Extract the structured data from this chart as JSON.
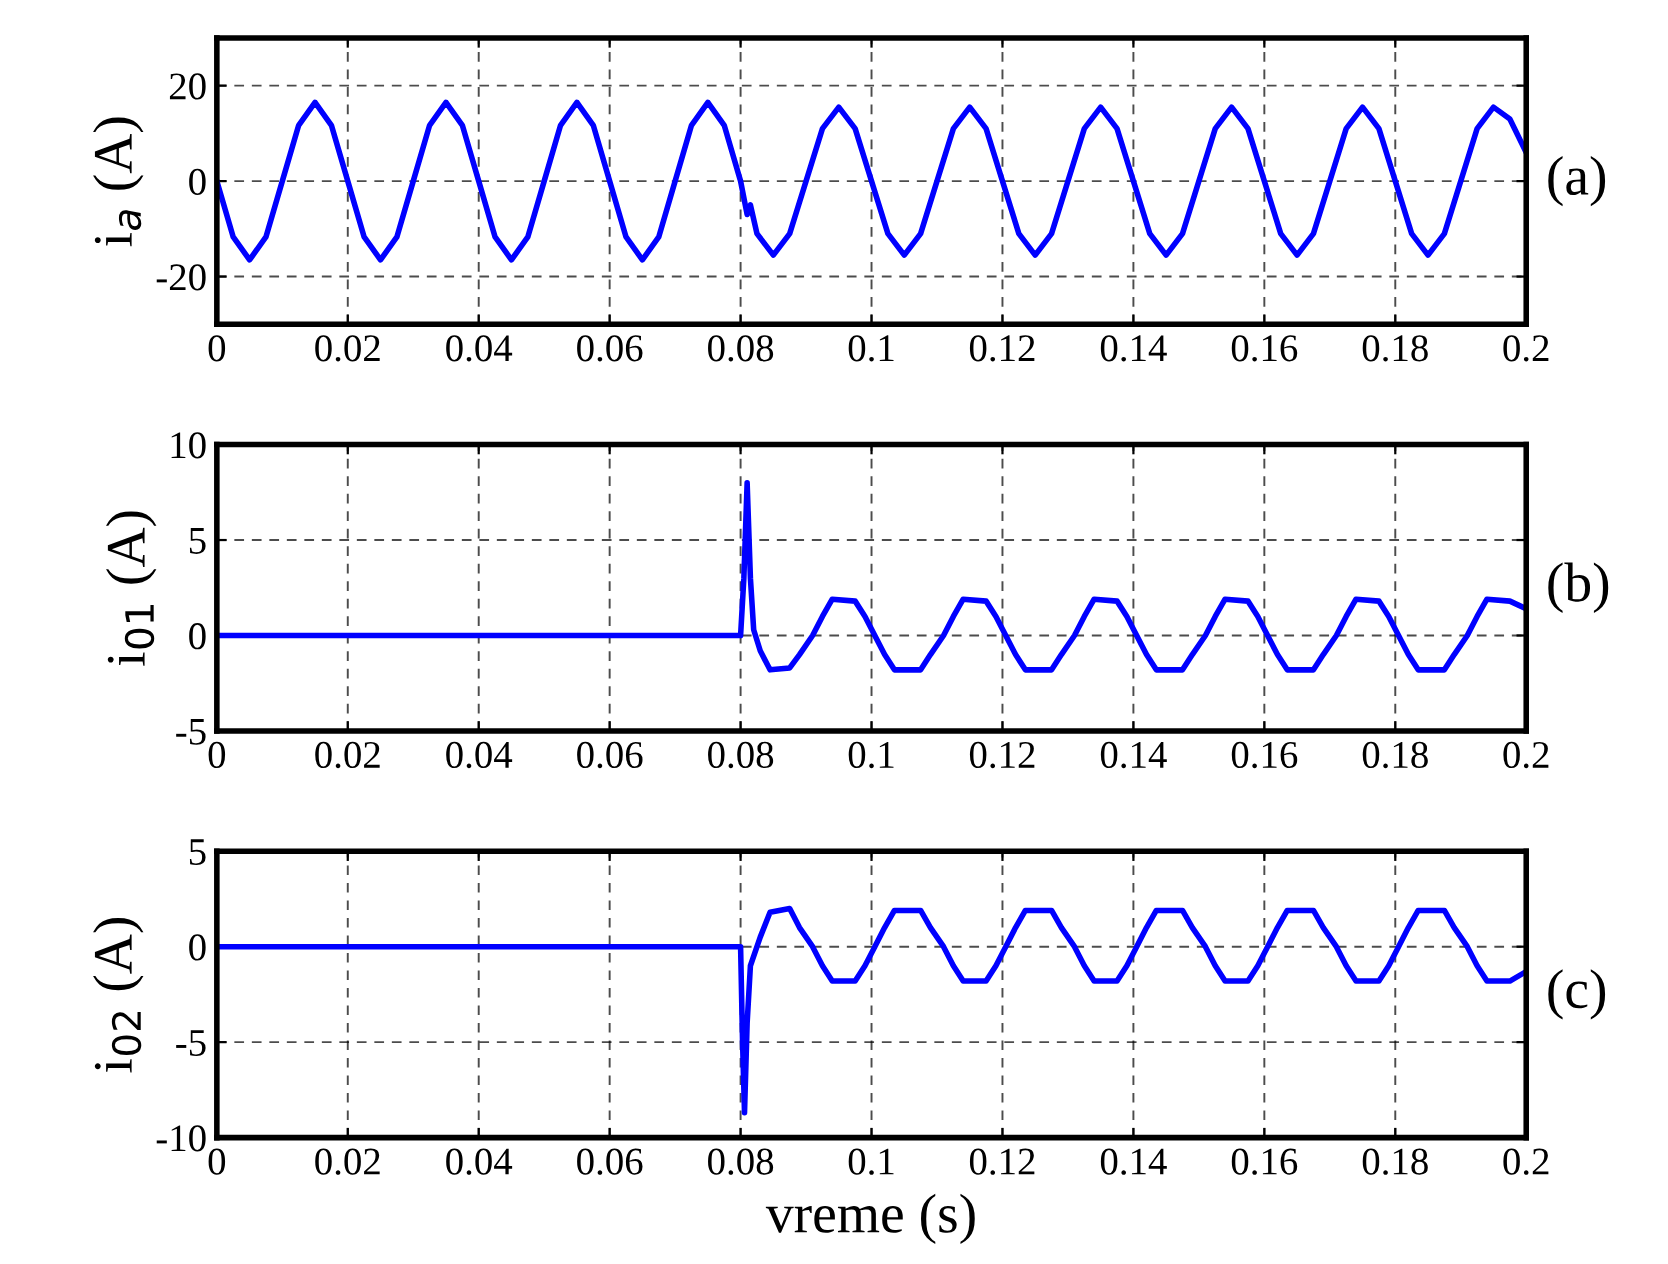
{
  "chart_data": [
    {
      "type": "line",
      "ylabel": "i$_{a}$ (A)",
      "annotations": [
        "(a)"
      ],
      "xlim": [
        0,
        0.2
      ],
      "ylim": [
        -30,
        30
      ],
      "xticks": [
        0,
        0.02,
        0.04,
        0.06,
        0.08,
        0.1,
        0.12,
        0.14,
        0.16,
        0.18,
        0.2
      ],
      "yticks": [
        -20,
        0,
        20
      ],
      "grid": true,
      "line_style": "solid",
      "marker": "none",
      "series": [
        {
          "color": "#0000ff",
          "x": [
            0,
            0.0025,
            0.005,
            0.0075,
            0.01,
            0.0125,
            0.015,
            0.0175,
            0.02,
            0.0225,
            0.025,
            0.0275,
            0.03,
            0.0325,
            0.035,
            0.0375,
            0.04,
            0.0425,
            0.045,
            0.0475,
            0.05,
            0.0525,
            0.055,
            0.0575,
            0.06,
            0.0625,
            0.065,
            0.0675,
            0.07,
            0.0725,
            0.075,
            0.0775,
            0.08,
            0.081,
            0.0815,
            0.0825,
            0.085,
            0.0875,
            0.09,
            0.0925,
            0.095,
            0.0975,
            0.1,
            0.1025,
            0.105,
            0.1075,
            0.11,
            0.1125,
            0.115,
            0.1175,
            0.12,
            0.1225,
            0.125,
            0.1275,
            0.13,
            0.1325,
            0.135,
            0.1375,
            0.14,
            0.1425,
            0.145,
            0.1475,
            0.15,
            0.1525,
            0.155,
            0.1575,
            0.16,
            0.1625,
            0.165,
            0.1675,
            0.17,
            0.1725,
            0.175,
            0.1775,
            0.18,
            0.1825,
            0.185,
            0.1875,
            0.19,
            0.1925,
            0.195,
            0.1975,
            0.2
          ],
          "values": [
            0,
            -11.7,
            -16.5,
            -11.7,
            0,
            11.7,
            16.5,
            11.7,
            0,
            -11.7,
            -16.5,
            -11.7,
            0,
            11.7,
            16.5,
            11.7,
            0,
            -11.7,
            -16.5,
            -11.7,
            0,
            11.7,
            16.5,
            11.7,
            0,
            -11.7,
            -16.5,
            -11.7,
            0,
            11.7,
            16.5,
            11.7,
            0,
            -7,
            -5,
            -11,
            -15.5,
            -11,
            0,
            11,
            15.5,
            11,
            0,
            -11,
            -15.5,
            -11,
            0,
            11,
            15.5,
            11,
            0,
            -11,
            -15.5,
            -11,
            0,
            11,
            15.5,
            11,
            0,
            -11,
            -15.5,
            -11,
            0,
            11,
            15.5,
            11,
            0,
            -11,
            -15.5,
            -11,
            0,
            11,
            15.5,
            11,
            0,
            -11,
            -15.5,
            -11,
            0,
            11,
            15.5,
            13,
            6
          ]
        }
      ]
    },
    {
      "type": "line",
      "ylabel": "i$_{01}$ (A)",
      "annotations": [
        "(b)"
      ],
      "xlim": [
        0,
        0.2
      ],
      "ylim": [
        -5,
        10
      ],
      "xticks": [
        0,
        0.02,
        0.04,
        0.06,
        0.08,
        0.1,
        0.12,
        0.14,
        0.16,
        0.18,
        0.2
      ],
      "yticks": [
        -5,
        0,
        5,
        10
      ],
      "grid": true,
      "line_style": "solid",
      "marker": "none",
      "series": [
        {
          "color": "#0000ff",
          "x": [
            0,
            0.08,
            0.0805,
            0.081,
            0.0815,
            0.082,
            0.083,
            0.0845,
            0.0875,
            0.089,
            0.091,
            0.0925,
            0.094,
            0.0975,
            0.099,
            0.1005,
            0.102,
            0.1035,
            0.1075,
            0.109,
            0.111,
            0.1125,
            0.114,
            0.1175,
            0.119,
            0.1205,
            0.122,
            0.1235,
            0.1275,
            0.129,
            0.131,
            0.1325,
            0.134,
            0.1375,
            0.139,
            0.1405,
            0.142,
            0.1435,
            0.1475,
            0.149,
            0.151,
            0.1525,
            0.154,
            0.1575,
            0.159,
            0.1605,
            0.162,
            0.1635,
            0.1675,
            0.169,
            0.171,
            0.1725,
            0.174,
            0.1775,
            0.179,
            0.1805,
            0.182,
            0.1835,
            0.1875,
            0.189,
            0.191,
            0.1925,
            0.194,
            0.1975,
            0.2
          ],
          "values": [
            0,
            0,
            3,
            8,
            3,
            0.3,
            -0.8,
            -1.8,
            -1.7,
            -1,
            0,
            1,
            1.9,
            1.8,
            1,
            0,
            -1,
            -1.8,
            -1.8,
            -1,
            0,
            1,
            1.9,
            1.8,
            1,
            0,
            -1,
            -1.8,
            -1.8,
            -1,
            0,
            1,
            1.9,
            1.8,
            1,
            0,
            -1,
            -1.8,
            -1.8,
            -1,
            0,
            1,
            1.9,
            1.8,
            1,
            0,
            -1,
            -1.8,
            -1.8,
            -1,
            0,
            1,
            1.9,
            1.8,
            1,
            0,
            -1,
            -1.8,
            -1.8,
            -1,
            0,
            1,
            1.9,
            1.8,
            1.4
          ]
        }
      ]
    },
    {
      "type": "line",
      "xlabel": "vreme (s)",
      "ylabel": "i$_{02}$ (A)",
      "annotations": [
        "(c)"
      ],
      "xlim": [
        0,
        0.2
      ],
      "ylim": [
        -10,
        5
      ],
      "xticks": [
        0,
        0.02,
        0.04,
        0.06,
        0.08,
        0.1,
        0.12,
        0.14,
        0.16,
        0.18,
        0.2
      ],
      "yticks": [
        -10,
        -5,
        0,
        5
      ],
      "grid": true,
      "line_style": "solid",
      "marker": "none",
      "series": [
        {
          "color": "#0000ff",
          "x": [
            0,
            0.08,
            0.0803,
            0.0806,
            0.081,
            0.0815,
            0.083,
            0.0845,
            0.0875,
            0.089,
            0.091,
            0.0925,
            0.094,
            0.0975,
            0.099,
            0.1005,
            0.102,
            0.1035,
            0.1075,
            0.109,
            0.111,
            0.1125,
            0.114,
            0.1175,
            0.119,
            0.1205,
            0.122,
            0.1235,
            0.1275,
            0.129,
            0.131,
            0.1325,
            0.134,
            0.1375,
            0.139,
            0.1405,
            0.142,
            0.1435,
            0.1475,
            0.149,
            0.151,
            0.1525,
            0.154,
            0.1575,
            0.159,
            0.1605,
            0.162,
            0.1635,
            0.1675,
            0.169,
            0.171,
            0.1725,
            0.174,
            0.1775,
            0.179,
            0.1805,
            0.182,
            0.1835,
            0.1875,
            0.189,
            0.191,
            0.1925,
            0.194,
            0.1975,
            0.2
          ],
          "values": [
            0,
            0,
            -5,
            -8.7,
            -4,
            -1,
            0.5,
            1.8,
            2,
            1,
            0,
            -1,
            -1.8,
            -1.8,
            -1,
            0,
            1,
            1.9,
            1.9,
            1,
            0,
            -1,
            -1.8,
            -1.8,
            -1,
            0,
            1,
            1.9,
            1.9,
            1,
            0,
            -1,
            -1.8,
            -1.8,
            -1,
            0,
            1,
            1.9,
            1.9,
            1,
            0,
            -1,
            -1.8,
            -1.8,
            -1,
            0,
            1,
            1.9,
            1.9,
            1,
            0,
            -1,
            -1.8,
            -1.8,
            -1,
            0,
            1,
            1.9,
            1.9,
            1,
            0,
            -1,
            -1.8,
            -1.8,
            -1.3
          ]
        }
      ]
    }
  ]
}
